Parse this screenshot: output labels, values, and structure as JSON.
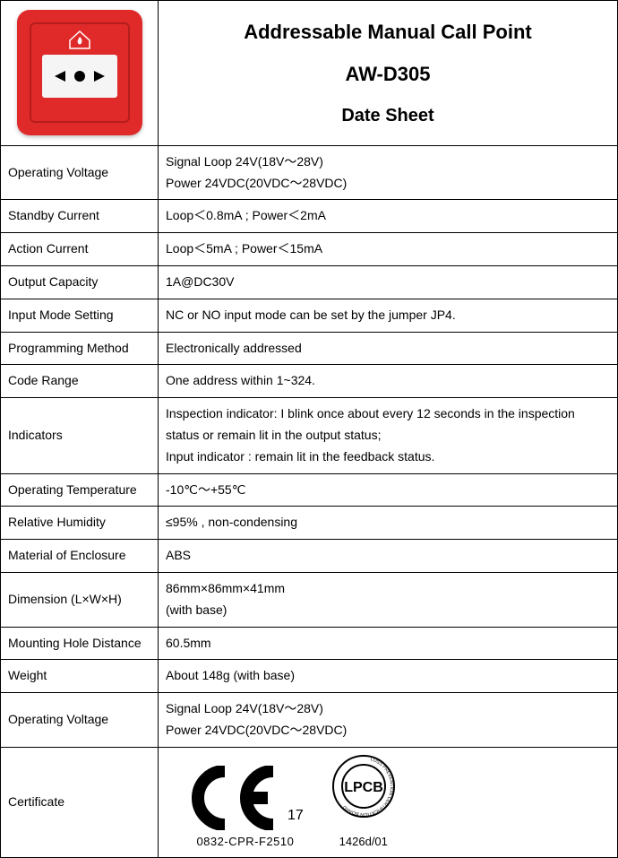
{
  "header": {
    "title_line1": "Addressable Manual Call Point",
    "title_line2": "AW-D305",
    "title_line3": "Date Sheet"
  },
  "device": {
    "body_color": "#e02a2a",
    "inner_border_color": "#b51d1d",
    "panel_color": "#f5f5f5"
  },
  "rows": [
    {
      "label": "Operating Voltage",
      "value": "Signal Loop 24V(18V～28V)\nPower 24VDC(20VDC～28VDC)"
    },
    {
      "label": "Standby Current",
      "value": "Loop＜0.8mA ; Power＜2mA"
    },
    {
      "label": "Action Current",
      "value": "Loop＜5mA ; Power＜15mA"
    },
    {
      "label": "Output Capacity",
      "value": "1A@DC30V"
    },
    {
      "label": "Input Mode Setting",
      "value": "NC or NO input mode can be set by the jumper JP4."
    },
    {
      "label": "Programming Method",
      "value": "Electronically addressed"
    },
    {
      "label": "Code Range",
      "value": "One address within 1~324."
    },
    {
      "label": "Indicators",
      "value": "Inspection indicator: I blink once about every 12 seconds in the inspection status or remain lit in the output status;\nInput indicator : remain lit in the feedback status."
    },
    {
      "label": "Operating Temperature",
      "value": "-10℃～+55℃"
    },
    {
      "label": "Relative Humidity",
      "value": "≤95% , non-condensing"
    },
    {
      "label": "Material of Enclosure",
      "value": "ABS"
    },
    {
      "label": "Dimension (L×W×H)",
      "value": "86mm×86mm×41mm\n(with base)"
    },
    {
      "label": "Mounting Hole Distance",
      "value": "60.5mm"
    },
    {
      "label": "Weight",
      "value": "About 148g (with base)"
    },
    {
      "label": "Operating Voltage",
      "value": "Signal Loop 24V(18V～28V)\nPower 24VDC(20VDC～28VDC)"
    }
  ],
  "certificate": {
    "label": "Certificate",
    "ce_suffix": "17",
    "ce_code": "0832-CPR-F2510",
    "lpcb_label": "LPCB",
    "lpcb_ring_text": "LOSS PREVENTION CERTIFICATION BOARD",
    "lpcb_code": "1426d/01"
  }
}
